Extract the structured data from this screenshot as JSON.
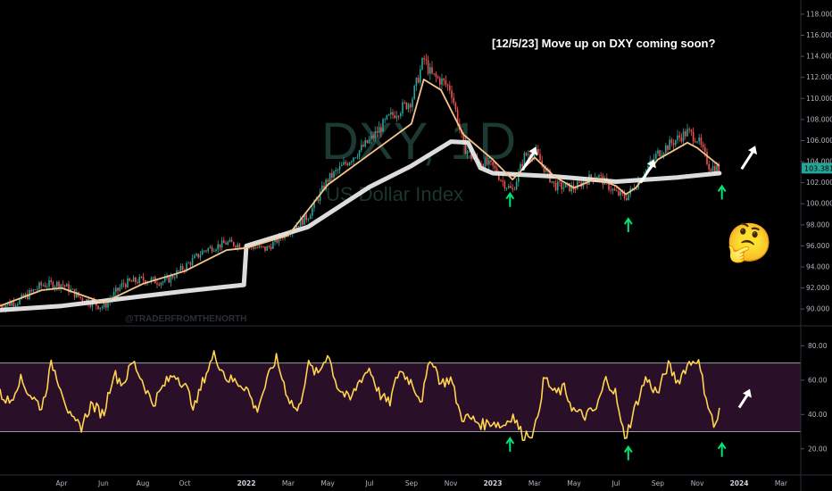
{
  "title": "[12/5/23] Move up on DXY coming soon?",
  "watermark": {
    "symbol": "DXY, 1D",
    "name": "US Dollar Index",
    "author": "@TRADERFROMTHENORTH"
  },
  "emoji": "🤔",
  "colors": {
    "bull": "#26a69a",
    "bear": "#ef5350",
    "ema": "#f7c58c",
    "sma": "#e8e8e8",
    "rsi": "#ffd54f",
    "band": "#2a0f28",
    "arrow_green": "#00e676",
    "arrow_white": "#ffffff"
  },
  "chart_data": [
    {
      "type": "line",
      "panel": "price",
      "ylim": [
        89,
        118.5
      ],
      "y_ticks": [
        "118.000",
        "116.000",
        "114.000",
        "112.000",
        "110.000",
        "108.000",
        "106.000",
        "104.000",
        "102.000",
        "100.000",
        "98.000",
        "96.000",
        "94.000",
        "92.000",
        "90.000"
      ],
      "x_ticks": [
        "Apr",
        "Jun",
        "Aug",
        "Oct",
        "2022",
        "Mar",
        "May",
        "Jul",
        "Sep",
        "Nov",
        "2023",
        "Mar",
        "May",
        "Jul",
        "Sep",
        "Nov",
        "2024",
        "Mar"
      ],
      "x_tick_values": [
        2021.25,
        2021.42,
        2021.58,
        2021.75,
        2022.0,
        2022.17,
        2022.33,
        2022.5,
        2022.67,
        2022.83,
        2023.0,
        2023.17,
        2023.33,
        2023.5,
        2023.67,
        2023.83,
        2024.0,
        2024.17
      ],
      "xlim": [
        2021.0,
        2024.25
      ],
      "last_price": "103.381",
      "series": [
        {
          "kind": "close",
          "x": [
            2021.0,
            2021.08,
            2021.17,
            2021.25,
            2021.33,
            2021.42,
            2021.5,
            2021.58,
            2021.67,
            2021.75,
            2021.83,
            2021.92,
            2022.0,
            2022.08,
            2022.17,
            2022.25,
            2022.33,
            2022.42,
            2022.5,
            2022.58,
            2022.67,
            2022.72,
            2022.75,
            2022.79,
            2022.83,
            2022.88,
            2022.92,
            2023.0,
            2023.04,
            2023.08,
            2023.13,
            2023.17,
            2023.25,
            2023.33,
            2023.42,
            2023.5,
            2023.54,
            2023.58,
            2023.67,
            2023.75,
            2023.79,
            2023.83,
            2023.88,
            2023.92
          ],
          "values": [
            90.3,
            90.8,
            92.3,
            92.4,
            91.0,
            90.2,
            92.4,
            92.8,
            92.6,
            94.0,
            95.6,
            96.3,
            96.0,
            95.7,
            97.4,
            98.8,
            102.3,
            104.2,
            106.0,
            108.2,
            109.8,
            113.8,
            112.2,
            111.7,
            110.9,
            105.5,
            104.3,
            103.5,
            102.1,
            101.2,
            104.6,
            105.0,
            101.7,
            101.5,
            102.8,
            101.0,
            100.6,
            101.8,
            104.8,
            106.2,
            106.8,
            106.2,
            103.5,
            103.38
          ]
        },
        {
          "kind": "ema",
          "x": [
            2021.0,
            2021.17,
            2021.25,
            2021.42,
            2021.58,
            2021.75,
            2021.92,
            2022.0,
            2022.17,
            2022.33,
            2022.5,
            2022.67,
            2022.72,
            2022.79,
            2022.88,
            2023.0,
            2023.08,
            2023.17,
            2023.25,
            2023.33,
            2023.42,
            2023.5,
            2023.54,
            2023.58,
            2023.67,
            2023.79,
            2023.83,
            2023.92
          ],
          "values": [
            90.3,
            91.8,
            92.0,
            90.6,
            92.4,
            93.6,
            95.6,
            95.8,
            97.0,
            101.8,
            104.7,
            107.6,
            111.8,
            110.8,
            106.6,
            104.2,
            102.3,
            104.4,
            102.6,
            101.5,
            102.4,
            101.7,
            100.9,
            101.5,
            104.2,
            105.8,
            105.3,
            103.6
          ]
        },
        {
          "kind": "sma",
          "x": [
            2021.0,
            2021.25,
            2021.5,
            2021.75,
            2021.99,
            2022.0,
            2022.25,
            2022.5,
            2022.67,
            2022.83,
            2022.9,
            2022.95,
            2023.0,
            2023.25,
            2023.5,
            2023.75,
            2023.92
          ],
          "values": [
            89.9,
            90.3,
            91.0,
            91.7,
            92.3,
            96.0,
            97.8,
            101.6,
            103.6,
            105.9,
            105.8,
            103.4,
            102.9,
            102.6,
            102.1,
            102.5,
            102.9
          ]
        }
      ]
    },
    {
      "type": "line",
      "panel": "rsi",
      "ylim": [
        10,
        88
      ],
      "y_ticks": [
        "80.00",
        "60.00",
        "40.00",
        "20.00"
      ],
      "bands": [
        30,
        70
      ],
      "xlim": [
        2021.0,
        2024.25
      ],
      "series": [
        {
          "kind": "rsi",
          "x": [
            2021.0,
            2021.04,
            2021.08,
            2021.12,
            2021.17,
            2021.21,
            2021.25,
            2021.29,
            2021.33,
            2021.37,
            2021.42,
            2021.46,
            2021.5,
            2021.54,
            2021.58,
            2021.62,
            2021.67,
            2021.71,
            2021.75,
            2021.79,
            2021.83,
            2021.87,
            2021.92,
            2021.96,
            2022.0,
            2022.04,
            2022.08,
            2022.12,
            2022.17,
            2022.21,
            2022.25,
            2022.29,
            2022.33,
            2022.37,
            2022.42,
            2022.46,
            2022.5,
            2022.54,
            2022.58,
            2022.62,
            2022.67,
            2022.71,
            2022.75,
            2022.79,
            2022.83,
            2022.87,
            2022.92,
            2022.96,
            2023.0,
            2023.04,
            2023.08,
            2023.12,
            2023.17,
            2023.21,
            2023.25,
            2023.29,
            2023.33,
            2023.37,
            2023.42,
            2023.46,
            2023.5,
            2023.52,
            2023.54,
            2023.58,
            2023.62,
            2023.67,
            2023.71,
            2023.75,
            2023.79,
            2023.83,
            2023.87,
            2023.9,
            2023.92
          ],
          "values": [
            52,
            47,
            61,
            52,
            44,
            70,
            55,
            36,
            33,
            46,
            40,
            64,
            58,
            71,
            59,
            46,
            58,
            64,
            57,
            44,
            62,
            75,
            61,
            59,
            56,
            42,
            58,
            73,
            50,
            41,
            69,
            63,
            76,
            56,
            48,
            60,
            67,
            52,
            46,
            66,
            59,
            48,
            74,
            58,
            61,
            39,
            37,
            34,
            36,
            33,
            40,
            28,
            30,
            62,
            52,
            55,
            42,
            39,
            43,
            61,
            52,
            34,
            27,
            45,
            61,
            52,
            69,
            59,
            69,
            73,
            48,
            32,
            42
          ]
        }
      ]
    }
  ],
  "annotations": {
    "green_arrows": [
      {
        "panel": "price",
        "x": 2023.07,
        "y": 100.3
      },
      {
        "panel": "price",
        "x": 2023.55,
        "y": 97.9
      },
      {
        "panel": "price",
        "x": 2023.93,
        "y": 101.0
      },
      {
        "panel": "rsi",
        "x": 2023.07,
        "y": 22
      },
      {
        "panel": "rsi",
        "x": 2023.55,
        "y": 17
      },
      {
        "panel": "rsi",
        "x": 2023.93,
        "y": 19
      }
    ],
    "white_arrows": [
      {
        "panel": "price",
        "x": 2023.12,
        "y": 103.2
      },
      {
        "panel": "price",
        "x": 2023.6,
        "y": 102.0
      },
      {
        "panel": "price",
        "x": 2024.01,
        "y": 103.3
      },
      {
        "panel": "rsi",
        "x": 2024.0,
        "y": 44
      }
    ]
  }
}
